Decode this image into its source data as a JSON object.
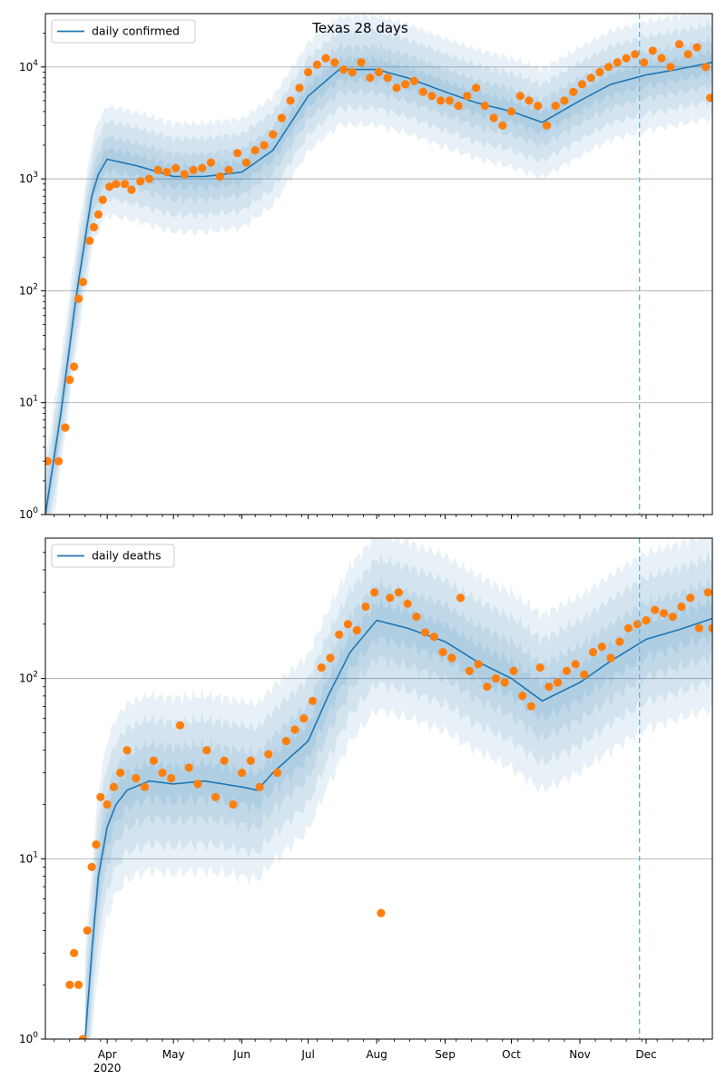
{
  "figure_title": "Texas 28 days",
  "colors": {
    "line": "#1f77b4",
    "points": "#ff7f0e",
    "band": "#1f77b4",
    "grid": "#b0b0b0",
    "cutoff": "#6aaed6"
  },
  "x_tick_labels": [
    "Apr",
    "May",
    "Jun",
    "Jul",
    "Aug",
    "Sep",
    "Oct",
    "Nov",
    "Dec"
  ],
  "x_year_label": "2020",
  "cutoff_date": "2020-11-28",
  "chart_data": [
    {
      "type": "scatter",
      "title": "Texas 28 days",
      "legend": "daily confirmed",
      "legend_position": "top-left",
      "yscale": "log",
      "ylim": [
        1,
        30000
      ],
      "xlim": [
        "2020-03-04",
        "2020-12-31"
      ],
      "y_tick_labels": [
        "10^0",
        "10^1",
        "10^2",
        "10^3",
        "10^4"
      ],
      "grid": true,
      "model_curve": {
        "name": "daily confirmed",
        "dates": [
          "2020-03-04",
          "2020-03-11",
          "2020-03-18",
          "2020-03-25",
          "2020-03-28",
          "2020-04-01",
          "2020-04-15",
          "2020-05-01",
          "2020-05-15",
          "2020-06-01",
          "2020-06-15",
          "2020-07-01",
          "2020-07-15",
          "2020-08-01",
          "2020-08-15",
          "2020-09-01",
          "2020-09-15",
          "2020-10-01",
          "2020-10-15",
          "2020-11-01",
          "2020-11-15",
          "2020-12-01",
          "2020-12-15",
          "2020-12-31"
        ],
        "values": [
          1,
          8,
          90,
          700,
          1100,
          1500,
          1300,
          1050,
          1050,
          1150,
          1800,
          5500,
          9500,
          9500,
          8000,
          6000,
          4800,
          4000,
          3200,
          5000,
          7000,
          8500,
          9500,
          11000
        ]
      },
      "observed": {
        "dates": [
          "2020-03-05",
          "2020-03-10",
          "2020-03-13",
          "2020-03-15",
          "2020-03-17",
          "2020-03-19",
          "2020-03-21",
          "2020-03-24",
          "2020-03-26",
          "2020-03-28",
          "2020-03-30",
          "2020-04-02",
          "2020-04-05",
          "2020-04-09",
          "2020-04-12",
          "2020-04-16",
          "2020-04-20",
          "2020-04-24",
          "2020-04-28",
          "2020-05-02",
          "2020-05-06",
          "2020-05-10",
          "2020-05-14",
          "2020-05-18",
          "2020-05-22",
          "2020-05-26",
          "2020-05-30",
          "2020-06-03",
          "2020-06-07",
          "2020-06-11",
          "2020-06-15",
          "2020-06-19",
          "2020-06-23",
          "2020-06-27",
          "2020-07-01",
          "2020-07-05",
          "2020-07-09",
          "2020-07-13",
          "2020-07-17",
          "2020-07-21",
          "2020-07-25",
          "2020-07-29",
          "2020-08-02",
          "2020-08-06",
          "2020-08-10",
          "2020-08-14",
          "2020-08-18",
          "2020-08-22",
          "2020-08-26",
          "2020-08-30",
          "2020-09-03",
          "2020-09-07",
          "2020-09-11",
          "2020-09-15",
          "2020-09-19",
          "2020-09-23",
          "2020-09-27",
          "2020-10-01",
          "2020-10-05",
          "2020-10-09",
          "2020-10-13",
          "2020-10-17",
          "2020-10-21",
          "2020-10-25",
          "2020-10-29",
          "2020-11-02",
          "2020-11-06",
          "2020-11-10",
          "2020-11-14",
          "2020-11-18",
          "2020-11-22",
          "2020-11-26",
          "2020-11-30",
          "2020-12-04",
          "2020-12-08",
          "2020-12-12",
          "2020-12-16",
          "2020-12-20",
          "2020-12-24",
          "2020-12-28",
          "2020-12-30"
        ],
        "values": [
          3,
          3,
          6,
          16,
          21,
          85,
          120,
          280,
          370,
          480,
          650,
          850,
          900,
          900,
          800,
          950,
          1000,
          1200,
          1150,
          1250,
          1100,
          1200,
          1250,
          1400,
          1050,
          1200,
          1700,
          1400,
          1800,
          2000,
          2500,
          3500,
          5000,
          6500,
          9000,
          10500,
          12000,
          11000,
          9500,
          9000,
          11000,
          8000,
          9000,
          8000,
          6500,
          7000,
          7500,
          6000,
          5500,
          5000,
          5000,
          4500,
          5500,
          6500,
          4500,
          3500,
          3000,
          4000,
          5500,
          5000,
          4500,
          3000,
          4500,
          5000,
          6000,
          7000,
          8000,
          9000,
          10000,
          11000,
          12000,
          13000,
          11000,
          14000,
          12000,
          10000,
          16000,
          13000,
          15000,
          10000,
          5300
        ]
      }
    },
    {
      "type": "scatter",
      "legend": "daily deaths",
      "legend_position": "top-left",
      "yscale": "log",
      "ylim": [
        1,
        600
      ],
      "xlim": [
        "2020-03-04",
        "2020-12-31"
      ],
      "y_tick_labels": [
        "10^0",
        "10^1",
        "10^2"
      ],
      "grid": true,
      "model_curve": {
        "name": "daily deaths",
        "dates": [
          "2020-03-22",
          "2020-03-25",
          "2020-03-28",
          "2020-04-01",
          "2020-04-05",
          "2020-04-10",
          "2020-04-20",
          "2020-05-01",
          "2020-05-15",
          "2020-06-01",
          "2020-06-08",
          "2020-06-15",
          "2020-07-01",
          "2020-07-10",
          "2020-07-20",
          "2020-08-01",
          "2020-08-15",
          "2020-09-01",
          "2020-09-15",
          "2020-10-01",
          "2020-10-15",
          "2020-11-01",
          "2020-11-15",
          "2020-12-01",
          "2020-12-15",
          "2020-12-31"
        ],
        "values": [
          1,
          3,
          8,
          15,
          20,
          24,
          27,
          26,
          27,
          25,
          24,
          30,
          45,
          80,
          140,
          210,
          190,
          160,
          125,
          100,
          75,
          95,
          125,
          165,
          185,
          215
        ]
      },
      "observed": {
        "dates": [
          "2020-03-15",
          "2020-03-17",
          "2020-03-19",
          "2020-03-21",
          "2020-03-23",
          "2020-03-25",
          "2020-03-27",
          "2020-03-29",
          "2020-04-01",
          "2020-04-04",
          "2020-04-07",
          "2020-04-10",
          "2020-04-14",
          "2020-04-18",
          "2020-04-22",
          "2020-04-26",
          "2020-04-30",
          "2020-05-04",
          "2020-05-08",
          "2020-05-12",
          "2020-05-16",
          "2020-05-20",
          "2020-05-24",
          "2020-05-28",
          "2020-06-01",
          "2020-06-05",
          "2020-06-09",
          "2020-06-13",
          "2020-06-17",
          "2020-06-21",
          "2020-06-25",
          "2020-06-29",
          "2020-07-03",
          "2020-07-07",
          "2020-07-11",
          "2020-07-15",
          "2020-07-19",
          "2020-07-23",
          "2020-07-27",
          "2020-07-31",
          "2020-08-03",
          "2020-08-07",
          "2020-08-11",
          "2020-08-15",
          "2020-08-19",
          "2020-08-23",
          "2020-08-27",
          "2020-08-31",
          "2020-09-04",
          "2020-09-08",
          "2020-09-12",
          "2020-09-16",
          "2020-09-20",
          "2020-09-24",
          "2020-09-28",
          "2020-10-02",
          "2020-10-06",
          "2020-10-10",
          "2020-10-14",
          "2020-10-18",
          "2020-10-22",
          "2020-10-26",
          "2020-10-30",
          "2020-11-03",
          "2020-11-07",
          "2020-11-11",
          "2020-11-15",
          "2020-11-19",
          "2020-11-23",
          "2020-11-27",
          "2020-12-01",
          "2020-12-05",
          "2020-12-09",
          "2020-12-13",
          "2020-12-17",
          "2020-12-21",
          "2020-12-25",
          "2020-12-29",
          "2020-12-31"
        ],
        "values": [
          2,
          3,
          2,
          1,
          4,
          9,
          12,
          22,
          20,
          25,
          30,
          40,
          28,
          25,
          35,
          30,
          28,
          55,
          32,
          26,
          40,
          22,
          35,
          20,
          30,
          35,
          25,
          38,
          30,
          45,
          52,
          60,
          75,
          115,
          130,
          175,
          200,
          185,
          250,
          300,
          5,
          280,
          300,
          260,
          220,
          180,
          170,
          140,
          130,
          280,
          110,
          120,
          90,
          100,
          95,
          110,
          80,
          70,
          115,
          90,
          95,
          110,
          120,
          105,
          140,
          150,
          130,
          160,
          190,
          200,
          210,
          240,
          230,
          220,
          250,
          280,
          190,
          300,
          190
        ]
      }
    }
  ]
}
